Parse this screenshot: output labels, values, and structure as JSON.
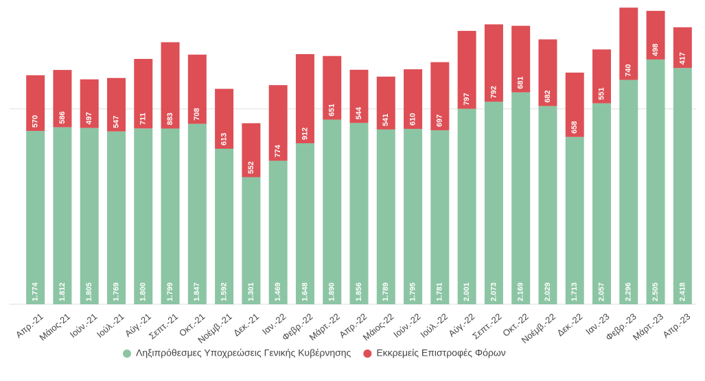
{
  "chart_data": {
    "type": "stacked_bar",
    "categories": [
      "Απρ.-21",
      "Μάιος-21",
      "Ιούν.-21",
      "Ιούλ.-21",
      "Αύγ.-21",
      "Σεπτ.-21",
      "Οκτ.-21",
      "Νοέμβ.-21",
      "Δεκ.-21",
      "Ιαν.-22",
      "Φεβρ.-22",
      "Μάρτ.-22",
      "Απρ.-22",
      "Μάιος-22",
      "Ιούν.-22",
      "Ιούλ.-22",
      "Αύγ.-22",
      "Σεπτ.-22",
      "Οκτ.-22",
      "Νοέμβ.-22",
      "Δεκ.-22",
      "Ιαν.-23",
      "Φεβρ.-23",
      "Μάρτ.-23",
      "Απρ.-23"
    ],
    "series": [
      {
        "name": "Ληξιπρόθεσμες Υποχρεώσεις Γενικής Κυβέρνησης",
        "color": "#8cc5a4",
        "values": [
          1774,
          1812,
          1805,
          1769,
          1800,
          1799,
          1847,
          1592,
          1301,
          1469,
          1648,
          1890,
          1856,
          1789,
          1795,
          1781,
          2001,
          2073,
          2169,
          2029,
          1713,
          2057,
          2296,
          2505,
          2418
        ],
        "value_labels": [
          "1.774",
          "1.812",
          "1.805",
          "1.769",
          "1.800",
          "1.799",
          "1.847",
          "1.592",
          "1.301",
          "1.469",
          "1.648",
          "1.890",
          "1.856",
          "1.789",
          "1.795",
          "1.781",
          "2.001",
          "2.073",
          "2.169",
          "2.029",
          "1.713",
          "2.057",
          "2.296",
          "2.505",
          "2.418"
        ]
      },
      {
        "name": "Εκκρεμείς Επιστροφές Φόρων",
        "color": "#dd4f55",
        "values": [
          570,
          586,
          497,
          547,
          711,
          883,
          708,
          613,
          552,
          774,
          912,
          651,
          544,
          541,
          610,
          697,
          797,
          792,
          681,
          682,
          658,
          551,
          740,
          498,
          417
        ]
      }
    ],
    "ylim": [
      0,
      3100
    ],
    "yticks": [
      0,
      2000
    ],
    "ytick_labels": false,
    "grid": true,
    "legend": "bottom"
  }
}
